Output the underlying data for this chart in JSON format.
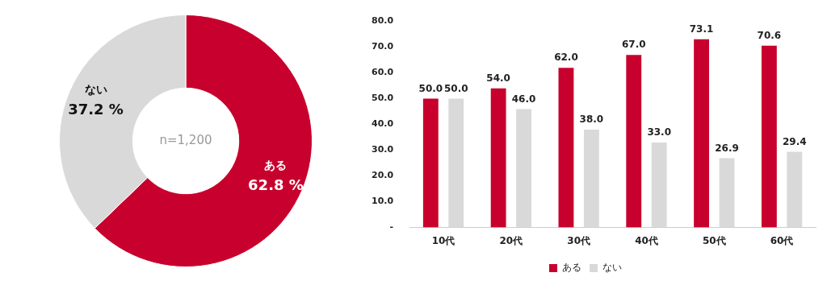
{
  "chart_data": [
    {
      "type": "donut",
      "categories": [
        "ある",
        "ない"
      ],
      "values": [
        62.8,
        37.2
      ],
      "colors": [
        "#c8002d",
        "#d9d9d9"
      ],
      "value_labels": [
        "62.8 %",
        "37.2 %"
      ],
      "annotations": [
        "n=1,200"
      ],
      "legend": false
    },
    {
      "type": "bar",
      "categories": [
        "10代",
        "20代",
        "30代",
        "40代",
        "50代",
        "60代"
      ],
      "series": [
        {
          "name": "ある",
          "color": "#c8002d",
          "values": [
            50.0,
            54.0,
            62.0,
            67.0,
            73.1,
            70.6
          ],
          "value_labels": [
            "50.0",
            "54.0",
            "62.0",
            "67.0",
            "73.1",
            "70.6"
          ]
        },
        {
          "name": "ない",
          "color": "#d9d9d9",
          "values": [
            50.0,
            46.0,
            38.0,
            33.0,
            26.9,
            29.4
          ],
          "value_labels": [
            "50.0",
            "46.0",
            "38.0",
            "33.0",
            "26.9",
            "29.4"
          ]
        }
      ],
      "ylim": [
        0,
        80
      ],
      "yticks": [
        {
          "value": 0,
          "label": "-"
        },
        {
          "value": 10,
          "label": "10.0"
        },
        {
          "value": 20,
          "label": "20.0"
        },
        {
          "value": 30,
          "label": "30.0"
        },
        {
          "value": 40,
          "label": "40.0"
        },
        {
          "value": 50,
          "label": "50.0"
        },
        {
          "value": 60,
          "label": "60.0"
        },
        {
          "value": 70,
          "label": "70.0"
        },
        {
          "value": 80,
          "label": "80.0"
        }
      ],
      "grid": false,
      "legend": "bottom"
    }
  ]
}
